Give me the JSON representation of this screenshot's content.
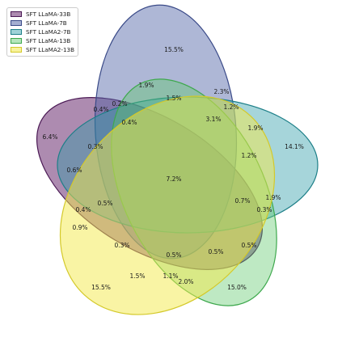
{
  "chart_data": {
    "type": "venn",
    "sets": [
      {
        "name": "SFT LLaMA-33B",
        "fill": "#6a2c70",
        "edge": "#4b1a55"
      },
      {
        "name": "SFT LLaMA-7B",
        "fill": "#4c5fa3",
        "edge": "#3a4a88"
      },
      {
        "name": "SFT LLaMA2-7B",
        "fill": "#2a9ba6",
        "edge": "#1d7f88"
      },
      {
        "name": "SFT LLaMA-13B",
        "fill": "#5cc76a",
        "edge": "#3ea84d"
      },
      {
        "name": "SFT LLaMA2-13B",
        "fill": "#f3e94a",
        "edge": "#d4c92a"
      }
    ],
    "regions": [
      {
        "label": "15.5%"
      },
      {
        "label": "2.3%"
      },
      {
        "label": "1.9%"
      },
      {
        "label": "1.5%"
      },
      {
        "label": "1.2%"
      },
      {
        "label": "0.4%"
      },
      {
        "label": "0.2%"
      },
      {
        "label": "0.4%"
      },
      {
        "label": "3.1%"
      },
      {
        "label": "1.9%"
      },
      {
        "label": "6.4%"
      },
      {
        "label": "14.1%"
      },
      {
        "label": "0.3%"
      },
      {
        "label": "1.2%"
      },
      {
        "label": "0.6%"
      },
      {
        "label": "7.2%"
      },
      {
        "label": "0.7%"
      },
      {
        "label": "1.9%"
      },
      {
        "label": "0.5%"
      },
      {
        "label": "0.3%"
      },
      {
        "label": "0.4%"
      },
      {
        "label": "0.9%"
      },
      {
        "label": "0.3%"
      },
      {
        "label": "0.5%"
      },
      {
        "label": "0.5%"
      },
      {
        "label": "0.5%"
      },
      {
        "label": "1.5%"
      },
      {
        "label": "1.1%"
      },
      {
        "label": "2.0%"
      },
      {
        "label": "15.5%"
      },
      {
        "label": "15.0%"
      }
    ]
  }
}
